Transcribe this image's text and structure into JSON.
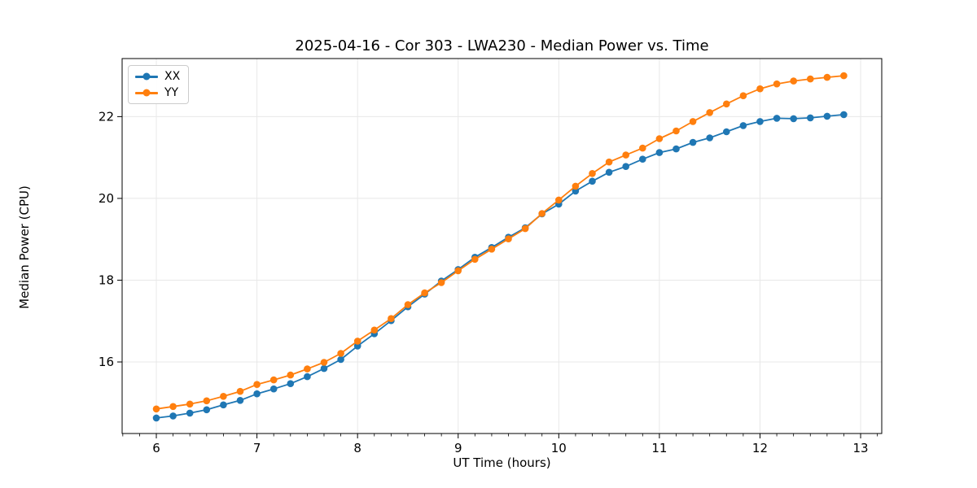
{
  "figure": {
    "background": "#ffffff"
  },
  "chart_data": {
    "type": "line",
    "title": "2025-04-16 - Cor 303 - LWA230 - Median Power vs. Time",
    "xlabel": "UT Time (hours)",
    "ylabel": "Median Power (CPU)",
    "xlim": [
      5.66,
      13.21
    ],
    "ylim": [
      14.25,
      23.42
    ],
    "xticks": [
      6,
      7,
      8,
      9,
      10,
      11,
      12,
      13
    ],
    "yticks": [
      16,
      18,
      20,
      22
    ],
    "x_minor_tick_step": 0.1666667,
    "grid": true,
    "grid_color": "#e8e8e8",
    "spine_color": "#000000",
    "tick_label_color": "#000000",
    "legend_position": "upper-left",
    "marker": "circle",
    "x": [
      6.0,
      6.1667,
      6.3333,
      6.5,
      6.6667,
      6.8333,
      7.0,
      7.1667,
      7.3333,
      7.5,
      7.6667,
      7.8333,
      8.0,
      8.1667,
      8.3333,
      8.5,
      8.6667,
      8.8333,
      9.0,
      9.1667,
      9.3333,
      9.5,
      9.6667,
      9.8333,
      10.0,
      10.1667,
      10.3333,
      10.5,
      10.6667,
      10.8333,
      11.0,
      11.1667,
      11.3333,
      11.5,
      11.6667,
      11.8333,
      12.0,
      12.1667,
      12.3333,
      12.5,
      12.6667,
      12.8333
    ],
    "series": [
      {
        "name": "XX",
        "color": "#1f77b4",
        "values": [
          14.63,
          14.68,
          14.75,
          14.83,
          14.95,
          15.06,
          15.22,
          15.34,
          15.47,
          15.64,
          15.84,
          16.06,
          16.39,
          16.69,
          17.01,
          17.35,
          17.66,
          17.98,
          18.26,
          18.56,
          18.8,
          19.05,
          19.28,
          19.62,
          19.86,
          20.18,
          20.42,
          20.64,
          20.78,
          20.96,
          21.12,
          21.21,
          21.37,
          21.48,
          21.63,
          21.78,
          21.88,
          21.96,
          21.95,
          21.97,
          22.01,
          22.05
        ]
      },
      {
        "name": "YY",
        "color": "#ff7f0e",
        "values": [
          14.85,
          14.91,
          14.97,
          15.05,
          15.16,
          15.28,
          15.45,
          15.56,
          15.68,
          15.83,
          15.99,
          16.21,
          16.51,
          16.78,
          17.06,
          17.4,
          17.69,
          17.94,
          18.23,
          18.51,
          18.76,
          19.01,
          19.26,
          19.63,
          19.96,
          20.3,
          20.61,
          20.89,
          21.06,
          21.23,
          21.46,
          21.65,
          21.88,
          22.1,
          22.31,
          22.51,
          22.68,
          22.8,
          22.87,
          22.92,
          22.96,
          23.0
        ]
      }
    ]
  }
}
